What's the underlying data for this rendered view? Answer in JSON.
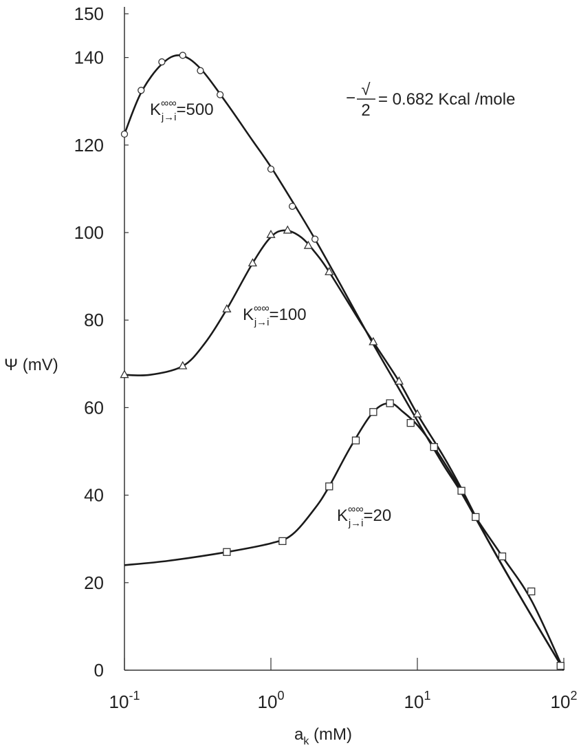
{
  "chart_data": {
    "type": "line",
    "xlabel": {
      "main": "a",
      "sub": "k",
      "unit": " (mM)"
    },
    "ylabel": "Ψ (mV)",
    "xscale": "log",
    "xlim": [
      0.1,
      100
    ],
    "ylim": [
      0,
      150
    ],
    "x_ticks": [
      {
        "value": 0.1,
        "base": "10",
        "exp": "-1"
      },
      {
        "value": 1,
        "base": "10",
        "exp": "0"
      },
      {
        "value": 10,
        "base": "10",
        "exp": "1"
      },
      {
        "value": 100,
        "base": "10",
        "exp": "2"
      }
    ],
    "y_ticks": [
      0,
      20,
      40,
      60,
      80,
      100,
      120,
      140,
      150
    ],
    "grid": false,
    "annotation": {
      "prefix": "−",
      "numerator": "√",
      "denominator": "2",
      "value": "= 0.682 Kcal /mole"
    },
    "series": [
      {
        "name": "K j→i ∞∞ = 500",
        "label": {
          "k": "K",
          "sup": "∞",
          "sub": "j→i",
          "value": "=500"
        },
        "marker": "circle",
        "points": [
          [
            0.1,
            122.5
          ],
          [
            0.13,
            132.5
          ],
          [
            0.18,
            139
          ],
          [
            0.25,
            140.5
          ],
          [
            0.33,
            137
          ],
          [
            0.45,
            131.5
          ],
          [
            1.0,
            114.5
          ],
          [
            1.4,
            106
          ],
          [
            2.0,
            98.5
          ]
        ],
        "curve": [
          [
            0.1,
            122.5
          ],
          [
            0.13,
            132
          ],
          [
            0.18,
            138.5
          ],
          [
            0.24,
            140.5
          ],
          [
            0.33,
            137.5
          ],
          [
            0.5,
            129.5
          ],
          [
            0.75,
            121
          ],
          [
            1.0,
            115
          ],
          [
            1.5,
            105.5
          ],
          [
            2.0,
            98.5
          ],
          [
            3,
            88
          ],
          [
            5,
            74.5
          ],
          [
            7,
            66
          ],
          [
            10,
            57
          ],
          [
            15,
            47
          ],
          [
            20,
            40.5
          ],
          [
            30,
            30
          ],
          [
            50,
            17
          ],
          [
            100,
            0
          ]
        ]
      },
      {
        "name": "K j→i ∞∞ = 100",
        "label": {
          "k": "K",
          "sup": "∞",
          "sub": "j→i",
          "value": "=100"
        },
        "marker": "triangle",
        "points": [
          [
            0.1,
            67.5
          ],
          [
            0.25,
            69.5
          ],
          [
            0.5,
            82.5
          ],
          [
            0.75,
            93
          ],
          [
            1.0,
            99.5
          ],
          [
            1.3,
            100.5
          ],
          [
            1.8,
            97
          ],
          [
            2.5,
            91
          ],
          [
            5,
            75
          ],
          [
            7.5,
            66
          ],
          [
            10,
            58.5
          ]
        ],
        "curve": [
          [
            0.1,
            67.5
          ],
          [
            0.15,
            67.5
          ],
          [
            0.25,
            69.5
          ],
          [
            0.35,
            74.5
          ],
          [
            0.5,
            82.5
          ],
          [
            0.75,
            93
          ],
          [
            1.0,
            99
          ],
          [
            1.25,
            100.5
          ],
          [
            1.6,
            99
          ],
          [
            2.0,
            95.5
          ],
          [
            2.5,
            91
          ],
          [
            4,
            80
          ],
          [
            5,
            75
          ],
          [
            7.5,
            66
          ],
          [
            10,
            58.5
          ],
          [
            15,
            49
          ],
          [
            20,
            41.5
          ],
          [
            30,
            30
          ],
          [
            50,
            17
          ],
          [
            100,
            0
          ]
        ]
      },
      {
        "name": "K j→i ∞∞ = 20",
        "label": {
          "k": "K",
          "sup": "∞",
          "sub": "j→i",
          "value": "=20"
        },
        "marker": "square",
        "points": [
          [
            0.5,
            27
          ],
          [
            1.2,
            29.5
          ],
          [
            2.5,
            42
          ],
          [
            3.8,
            52.5
          ],
          [
            5,
            59
          ],
          [
            6.5,
            61
          ],
          [
            9,
            56.5
          ],
          [
            13,
            51
          ],
          [
            20,
            41
          ],
          [
            25,
            35
          ],
          [
            38,
            26
          ],
          [
            60,
            18
          ],
          [
            95,
            1
          ]
        ],
        "curve": [
          [
            0.1,
            24
          ],
          [
            0.2,
            25
          ],
          [
            0.5,
            27
          ],
          [
            1.0,
            29
          ],
          [
            1.4,
            31
          ],
          [
            2.0,
            37
          ],
          [
            2.5,
            42
          ],
          [
            3.5,
            51
          ],
          [
            5,
            59
          ],
          [
            6.5,
            61
          ],
          [
            8,
            59
          ],
          [
            10,
            56
          ],
          [
            13,
            51
          ],
          [
            20,
            41
          ],
          [
            25,
            35
          ],
          [
            38,
            26
          ],
          [
            60,
            16
          ],
          [
            100,
            0
          ]
        ]
      }
    ]
  }
}
